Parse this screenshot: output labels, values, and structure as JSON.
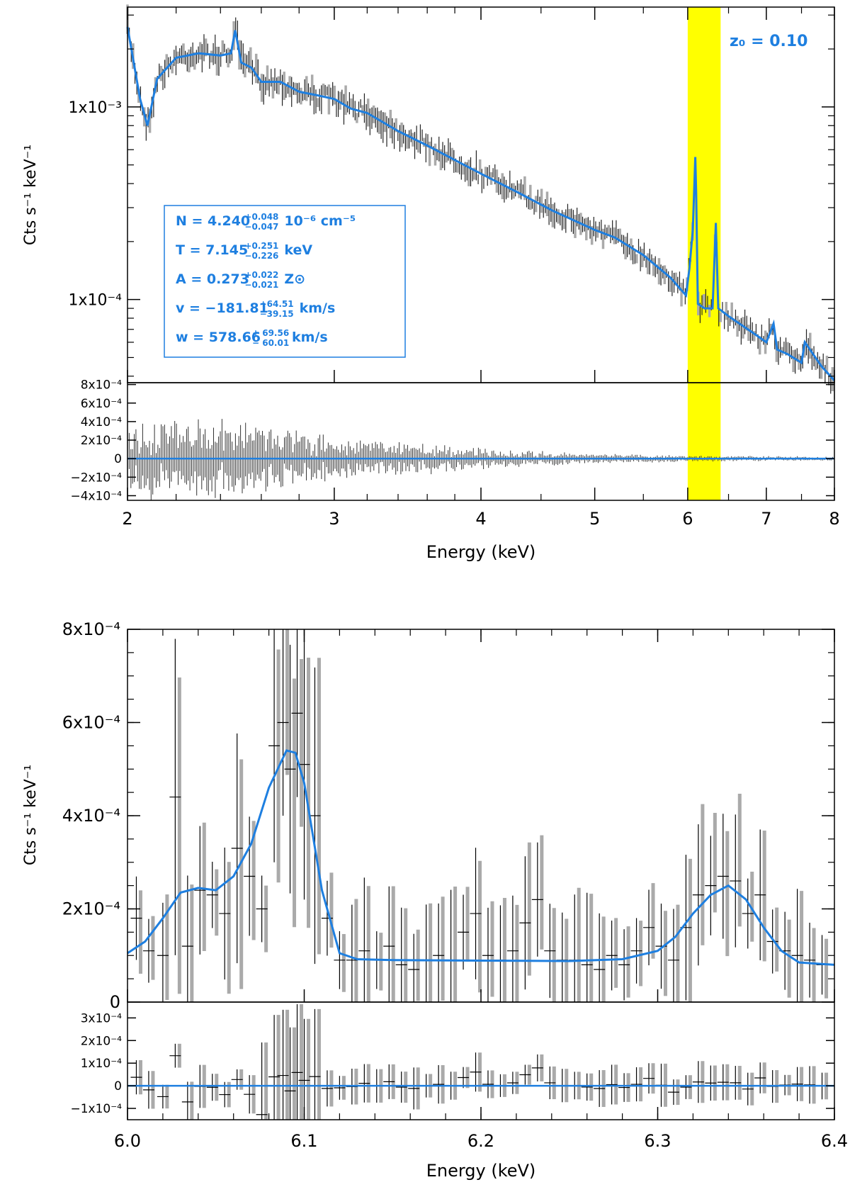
{
  "chart_data": [
    {
      "type": "line",
      "panel": "top-spectrum",
      "title": "",
      "xlabel": "Energy (keV)",
      "ylabel": "Cts s⁻¹ keV⁻¹",
      "xscale": "log",
      "yscale": "log",
      "xlim": [
        2,
        8
      ],
      "ylim": [
        3.7e-05,
        0.0033
      ],
      "xticks": [
        2,
        3,
        4,
        5,
        6,
        7,
        8
      ],
      "xtick_labels": [
        "2",
        "3",
        "4",
        "5",
        "6",
        "7",
        "8"
      ],
      "yticks": [
        0.001,
        0.0001
      ],
      "ytick_labels": [
        "1x10⁻³",
        "1x10⁻⁴"
      ],
      "highlight_band": {
        "x_range": [
          6.0,
          6.4
        ],
        "color": "#ffff00"
      },
      "annotation": "z₀ = 0.10",
      "fit_params": [
        {
          "text": "N = 4.240",
          "sup": "+0.048",
          "sub": "−0.047",
          "unit": "10⁻⁶ cm⁻⁵"
        },
        {
          "text": "T = 7.145",
          "sup": "+0.251",
          "sub": "−0.226",
          "unit": "keV"
        },
        {
          "text": "A = 0.273",
          "sup": "+0.022",
          "sub": "−0.021",
          "unit": "Z⊙"
        },
        {
          "text": "v = −181.81",
          "sup": "+64.51",
          "sub": "−39.15",
          "unit": "km/s"
        },
        {
          "text": "w = 578.66",
          "sup": "+ 69.56",
          "sub": "− 60.01",
          "unit": "km/s"
        }
      ],
      "series": [
        {
          "name": "model",
          "color": "#1e7fe0",
          "x": [
            2.0,
            2.05,
            2.08,
            2.12,
            2.2,
            2.3,
            2.4,
            2.45,
            2.47,
            2.5,
            2.55,
            2.6,
            2.7,
            2.8,
            2.9,
            3.0,
            3.1,
            3.2,
            3.4,
            3.6,
            3.8,
            4.0,
            4.3,
            4.6,
            5.0,
            5.2,
            5.5,
            5.8,
            5.98,
            6.02,
            6.06,
            6.09,
            6.1,
            6.12,
            6.2,
            6.3,
            6.34,
            6.37,
            6.5,
            6.8,
            7.0,
            7.1,
            7.15,
            7.3,
            7.5,
            7.55,
            7.8,
            8.0
          ],
          "y": [
            0.0026,
            0.0011,
            0.0008,
            0.0014,
            0.0018,
            0.0019,
            0.00185,
            0.0019,
            0.0025,
            0.0017,
            0.0016,
            0.00135,
            0.00135,
            0.0012,
            0.00115,
            0.0011,
            0.00098,
            0.00093,
            0.00075,
            0.00063,
            0.00053,
            0.00045,
            0.00036,
            0.00029,
            0.00023,
            0.00021,
            0.00017,
            0.00013,
            0.000105,
            0.000145,
            0.00023,
            0.00055,
            0.00036,
            9.5e-05,
            9e-05,
            9e-05,
            0.00025,
            9e-05,
            8.2e-05,
            6.8e-05,
            6e-05,
            7.5e-05,
            5.5e-05,
            5.2e-05,
            4.7e-05,
            6e-05,
            4.5e-05,
            3.8e-05
          ]
        }
      ]
    },
    {
      "type": "scatter",
      "panel": "top-residuals",
      "xscale": "log",
      "xlim": [
        2,
        8
      ],
      "ylim": [
        -0.00045,
        0.00082
      ],
      "yticks": [
        0.0008,
        0.0006,
        0.0004,
        0.0002,
        0,
        -0.0002,
        -0.0004
      ],
      "ytick_labels": [
        "8x10⁻⁴",
        "6x10⁻⁴",
        "4x10⁻⁴",
        "2x10⁻⁴",
        "0",
        "−2x10⁻⁴",
        "−4x10⁻⁴"
      ],
      "residual_envelope": {
        "x": [
          2.0,
          2.5,
          3.0,
          3.5,
          4.0,
          4.5,
          5.0,
          5.5,
          6.0,
          7.0,
          8.0
        ],
        "amplitude": [
          0.0003,
          0.0003,
          0.00016,
          0.00012,
          8e-05,
          5.5e-05,
          4e-05,
          3e-05,
          2.5e-05,
          2e-05,
          1.5e-05
        ]
      }
    },
    {
      "type": "line",
      "panel": "bottom-zoom",
      "xlabel": "",
      "ylabel": "Cts s⁻¹ keV⁻¹",
      "xlim": [
        6.0,
        6.4
      ],
      "ylim": [
        0,
        0.0008
      ],
      "yticks": [
        0,
        0.0002,
        0.0004,
        0.0006,
        0.0008
      ],
      "ytick_labels": [
        "0",
        "2x10⁻⁴",
        "4x10⁻⁴",
        "6x10⁻⁴",
        "8x10⁻⁴"
      ],
      "series": [
        {
          "name": "model",
          "color": "#1e7fe0",
          "x": [
            6.0,
            6.01,
            6.02,
            6.03,
            6.04,
            6.05,
            6.06,
            6.07,
            6.08,
            6.09,
            6.095,
            6.1,
            6.11,
            6.12,
            6.13,
            6.15,
            6.2,
            6.25,
            6.28,
            6.3,
            6.31,
            6.32,
            6.33,
            6.34,
            6.35,
            6.36,
            6.37,
            6.38,
            6.4
          ],
          "y": [
            0.000105,
            0.00013,
            0.00018,
            0.000235,
            0.000245,
            0.00024,
            0.00027,
            0.00034,
            0.00046,
            0.00054,
            0.000535,
            0.00047,
            0.00024,
            0.000105,
            9.2e-05,
            9e-05,
            8.9e-05,
            8.8e-05,
            9.2e-05,
            0.00011,
            0.00014,
            0.00019,
            0.00023,
            0.00025,
            0.00022,
            0.00016,
            0.00011,
            8.5e-05,
            8e-05
          ]
        },
        {
          "name": "data",
          "color": "#000000",
          "x": [
            6.005,
            6.012,
            6.02,
            6.027,
            6.034,
            6.041,
            6.048,
            6.055,
            6.062,
            6.069,
            6.076,
            6.083,
            6.088,
            6.092,
            6.096,
            6.1,
            6.106,
            6.113,
            6.12,
            6.127,
            6.134,
            6.141,
            6.148,
            6.155,
            6.162,
            6.169,
            6.176,
            6.183,
            6.19,
            6.197,
            6.204,
            6.211,
            6.218,
            6.225,
            6.232,
            6.239,
            6.246,
            6.253,
            6.26,
            6.267,
            6.274,
            6.281,
            6.288,
            6.295,
            6.302,
            6.309,
            6.316,
            6.323,
            6.33,
            6.337,
            6.344,
            6.351,
            6.358,
            6.365,
            6.372,
            6.379,
            6.386,
            6.393
          ],
          "y": [
            0.00018,
            0.00011,
            0.0001,
            0.00044,
            0.00012,
            0.00024,
            0.00023,
            0.00019,
            0.00033,
            0.00027,
            0.0002,
            0.00055,
            0.0006,
            0.0005,
            0.00062,
            0.00051,
            0.0004,
            0.00018,
            9e-05,
            9e-05,
            0.00011,
            9e-05,
            0.00012,
            8e-05,
            7e-05,
            9e-05,
            0.0001,
            9e-05,
            0.00015,
            0.00019,
            0.0001,
            9e-05,
            0.00011,
            0.00017,
            0.00022,
            0.00011,
            9e-05,
            9e-05,
            8e-05,
            7e-05,
            0.0001,
            8e-05,
            0.00011,
            0.00016,
            0.00012,
            9e-05,
            0.00016,
            0.00023,
            0.00025,
            0.00027,
            0.00026,
            0.00019,
            0.00023,
            0.00013,
            0.00011,
            0.0001,
            9e-05,
            8e-05
          ]
        }
      ]
    },
    {
      "type": "scatter",
      "panel": "bottom-residuals",
      "xlabel": "Energy (keV)",
      "xlim": [
        6.0,
        6.4
      ],
      "ylim": [
        -0.00015,
        0.00037
      ],
      "xticks": [
        6.0,
        6.1,
        6.2,
        6.3,
        6.4
      ],
      "xtick_labels": [
        "6.0",
        "6.1",
        "6.2",
        "6.3",
        "6.4"
      ],
      "yticks": [
        0.0003,
        0.0002,
        0.0001,
        0,
        -0.0001
      ],
      "ytick_labels": [
        "3x10⁻⁴",
        "2x10⁻⁴",
        "1x10⁻⁴",
        "0",
        "−1x10⁻⁴"
      ]
    }
  ]
}
